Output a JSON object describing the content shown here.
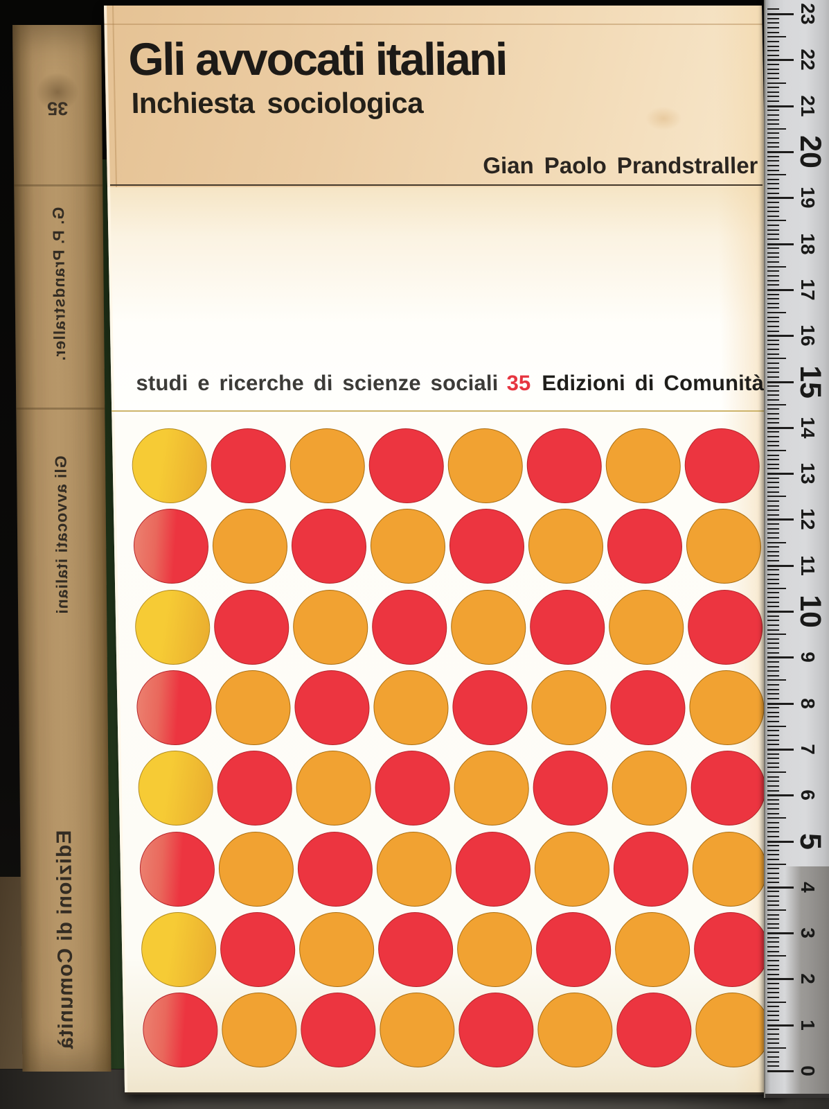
{
  "cover": {
    "title": "Gli avvocati italiani",
    "subtitle": "Inchiesta sociologica",
    "author": "Gian Paolo Prandstraller",
    "series_text": "studi e ricerche di scienze sociali",
    "series_number": "35",
    "publisher": "Edizioni di Comunità",
    "dots": {
      "rows": 8,
      "cols": 8,
      "pattern": [
        [
          "gold",
          "red",
          "orange",
          "red",
          "orange",
          "red",
          "orange",
          "red"
        ],
        [
          "red-fade",
          "orange",
          "red",
          "orange",
          "red",
          "orange",
          "red",
          "orange"
        ],
        [
          "gold",
          "red",
          "orange",
          "red",
          "orange",
          "red",
          "orange",
          "red"
        ],
        [
          "red-fade",
          "orange",
          "red",
          "orange",
          "red",
          "orange",
          "red",
          "orange"
        ],
        [
          "gold",
          "red",
          "orange",
          "red",
          "orange",
          "red",
          "orange",
          "red"
        ],
        [
          "red-fade",
          "orange",
          "red",
          "orange",
          "red",
          "orange",
          "red",
          "orange"
        ],
        [
          "gold",
          "red",
          "orange",
          "red",
          "orange",
          "red",
          "orange",
          "red"
        ],
        [
          "red-fade",
          "orange",
          "red",
          "orange",
          "red",
          "orange",
          "red",
          "orange"
        ]
      ]
    }
  },
  "spine": {
    "series_number": "35",
    "author": "G. P. Prandstraller.",
    "title": "Gli avvocati italiani",
    "publisher": "Edizioni di Comunità"
  },
  "ruler": {
    "unit": "cm",
    "numbers": [
      0,
      1,
      2,
      3,
      4,
      5,
      6,
      7,
      8,
      9,
      10,
      11,
      12,
      13,
      14,
      15,
      16,
      17,
      18,
      19,
      20,
      21,
      22,
      23
    ],
    "major_every": 5
  },
  "palette": {
    "dot_red": "#ec3540",
    "dot_red_border": "#b4252a",
    "dot_orange": "#f1a232",
    "dot_orange_border": "#aa6e12",
    "dot_gold_from": "#f6cb35",
    "dot_gold_to": "#e9ab2e",
    "dot_gold_border": "#b18a1f",
    "dot_redfade_from": "#ec8271",
    "dot_redfade_mid": "#e9685c",
    "series_number_red": "#e63540",
    "cover_top": "#ecccA0",
    "spine_tan": "#b29164",
    "ruler_gray": "#d7d8da"
  }
}
